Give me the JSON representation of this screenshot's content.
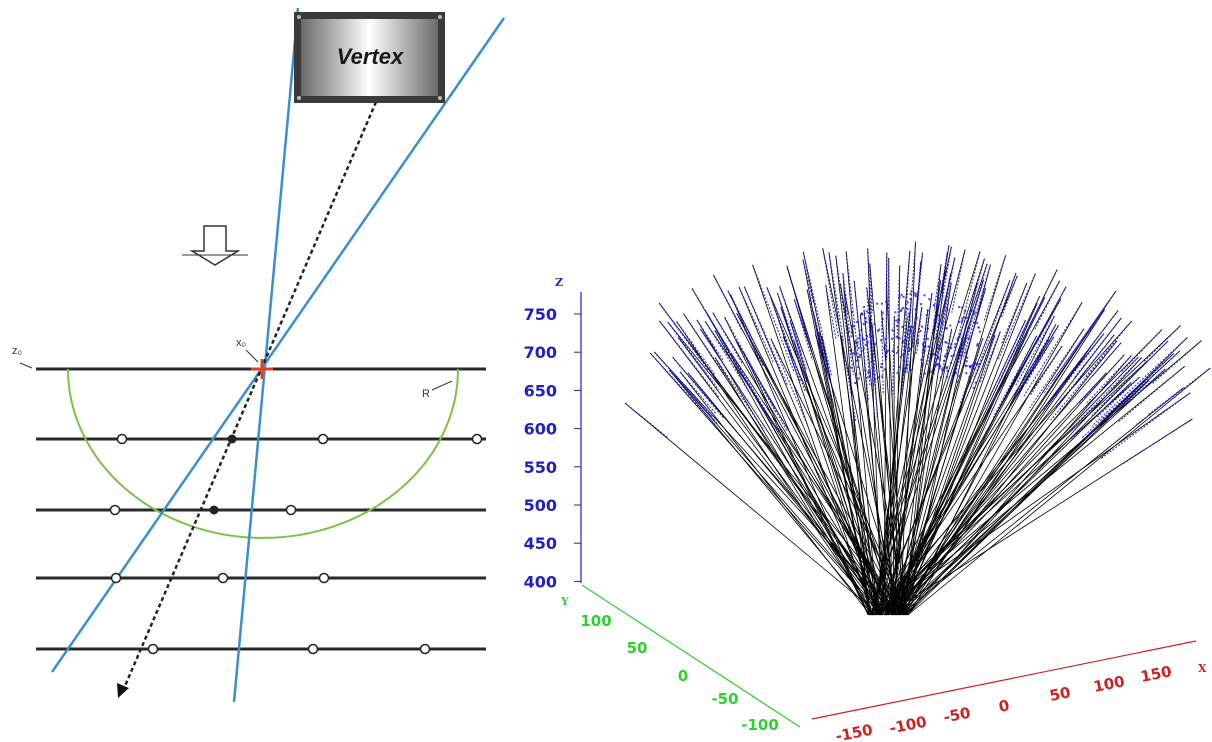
{
  "diagram": {
    "vertex_label": "Vertex",
    "z0_label": "z₀",
    "x0_label": "x₀",
    "r_label": "R"
  },
  "plot3d": {
    "z_axis": {
      "name": "Z",
      "ticks": [
        "750",
        "700",
        "650",
        "600",
        "550",
        "500",
        "450",
        "400"
      ]
    },
    "y_axis": {
      "name": "Y",
      "ticks": [
        "100",
        "50",
        "0",
        "-50",
        "-100"
      ]
    },
    "x_axis": {
      "name": "X",
      "ticks": [
        "-150",
        "-100",
        "-50",
        "0",
        "50",
        "100",
        "150"
      ]
    }
  },
  "colors": {
    "track_blue": "#3a8fd0",
    "circle_green": "#7cc24a",
    "marker_red": "#e8401c",
    "hit_blue": "#1a1ad0",
    "z_axis": "#2020c8",
    "y_axis": "#2fd02f",
    "x_axis": "#d02020"
  }
}
